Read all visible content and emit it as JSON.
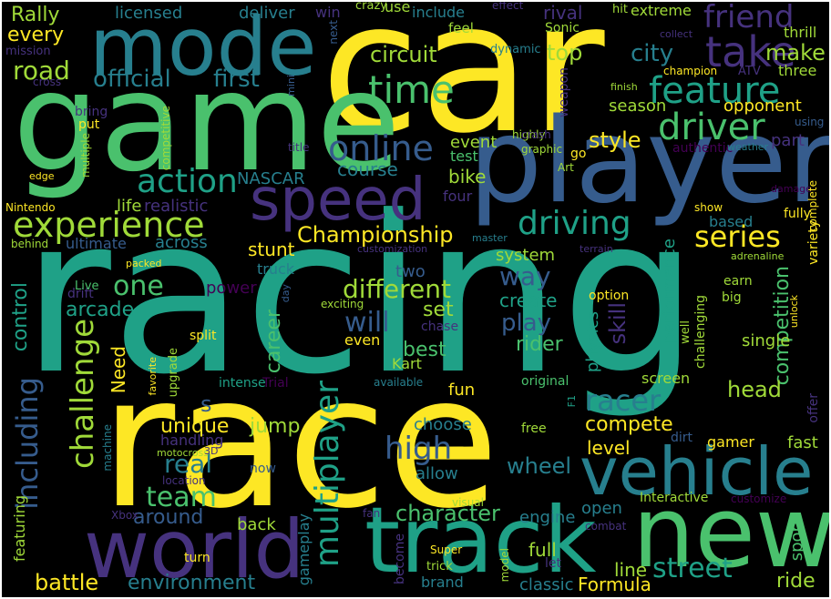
{
  "palette": {
    "background": "#000000",
    "yellow": "#fde725",
    "light_green": "#a0da39",
    "green": "#4ac16d",
    "aqua": "#1fa187",
    "teal": "#277f8e",
    "blue": "#365c8d",
    "indigo": "#46327e",
    "purple": "#440154"
  },
  "words": {
    "racing": "racing",
    "race": "race",
    "car": "car",
    "game": "game",
    "player": "player",
    "mode": "mode",
    "new": "new",
    "track": "track",
    "world": "world",
    "vehicle": "vehicle",
    "speed": "speed",
    "experience": "experience",
    "take": "take",
    "friend": "friend",
    "feature": "feature",
    "driver": "driver",
    "time": "time",
    "online": "online",
    "action": "action",
    "driving": "driving",
    "Championship": "Championship",
    "series": "series",
    "road": "road",
    "official": "official",
    "first": "first",
    "circuit": "circuit",
    "city": "city",
    "make": "make",
    "top": "top",
    "Rally": "Rally",
    "every": "every",
    "mission": "mission",
    "licensed": "licensed",
    "deliver": "deliver",
    "win": "win",
    "crazy": "crazy",
    "use": "use",
    "include": "include",
    "effect": "effect",
    "rival": "rival",
    "hit": "hit",
    "extreme": "extreme",
    "next": "next",
    "feel": "feel",
    "Sonic": "Sonic",
    "collect": "collect",
    "thrill": "thrill",
    "dynamic": "dynamic",
    "three": "three",
    "champion": "champion",
    "ATV": "ATV",
    "cross": "cross",
    "finish": "finish",
    "opponent": "opponent",
    "season": "season",
    "weapon": "weapon",
    "mini": "mini",
    "bring": "bring",
    "competitive": "competitive",
    "put": "put",
    "highly": "highly",
    "crash": "crash",
    "graphic": "graphic",
    "using": "using",
    "style": "style",
    "part": "part",
    "title": "title",
    "authentic": "authentic",
    "weather": "weather",
    "go": "go",
    "Art": "Art",
    "event": "event",
    "test": "test",
    "multiple": "multiple",
    "course": "course",
    "bike": "bike",
    "NASCAR": "NASCAR",
    "edge": "edge",
    "damage": "damage",
    "four": "four",
    "fully": "fully",
    "complete": "complete",
    "show": "show",
    "Nintendo": "Nintendo",
    "life": "life",
    "realistic": "realistic",
    "based": "based",
    "variety": "variety",
    "ultimate": "ultimate",
    "across": "across",
    "stunt": "stunt",
    "master": "master",
    "behind": "behind",
    "customization": "customization",
    "terrain": "terrain",
    "system": "system",
    "adrenaline": "adrenaline",
    "packed": "packed",
    "truck": "truck",
    "earn": "earn",
    "way": "way",
    "one": "one",
    "two": "two",
    "performance": "performance",
    "drift": "drift",
    "power": "power",
    "different": "different",
    "big": "big",
    "Live": "Live",
    "day": "day",
    "competition": "competition",
    "option": "option",
    "control": "control",
    "arcade": "arcade",
    "set": "set",
    "exciting": "exciting",
    "create": "create",
    "unlock": "unlock",
    "will": "will",
    "chase": "chase",
    "play": "play",
    "physics": "physics",
    "skill": "skill",
    "well": "well",
    "challenging": "challenging",
    "split": "split",
    "even": "even",
    "rider": "rider",
    "single": "single",
    "challenge": "challenge",
    "career": "career",
    "best": "best",
    "Need": "Need",
    "favorite": "favorite",
    "upgrade": "upgrade",
    "Kart": "Kart",
    "original": "original",
    "screen": "screen",
    "intense": "intense",
    "Trial": "Trial",
    "available": "available",
    "s": "s",
    "fun": "fun",
    "racer": "racer",
    "head": "head",
    "F1": "F1",
    "offer": "offer",
    "including": "including",
    "unique": "unique",
    "jump": "jump",
    "compete": "compete",
    "handling": "handling",
    "choose": "choose",
    "free": "free",
    "high": "high",
    "level": "level",
    "dirt": "dirt",
    "gamer": "gamer",
    "fast": "fast",
    "real": "real",
    "motocross": "motocross",
    "3D": "3D",
    "machine": "machine",
    "allow": "allow",
    "wheel": "wheel",
    "location": "location",
    "now": "now",
    "team": "team",
    "multiplayer": "multiplayer",
    "character": "character",
    "Interactive": "Interactive",
    "customize": "customize",
    "around": "around",
    "visual": "visual",
    "engine": "engine",
    "open": "open",
    "Xbox": "Xbox",
    "featuring": "featuring",
    "back": "back",
    "fan": "fan",
    "combat": "combat",
    "sport": "sport",
    "turn": "turn",
    "Super": "Super",
    "full": "full",
    "let": "let",
    "gameplay": "gameplay",
    "become": "become",
    "street": "street",
    "trick": "trick",
    "model": "model",
    "battle": "battle",
    "environment": "environment",
    "brand": "brand",
    "classic": "classic",
    "Formula": "Formula",
    "line": "line",
    "ride": "ride"
  }
}
